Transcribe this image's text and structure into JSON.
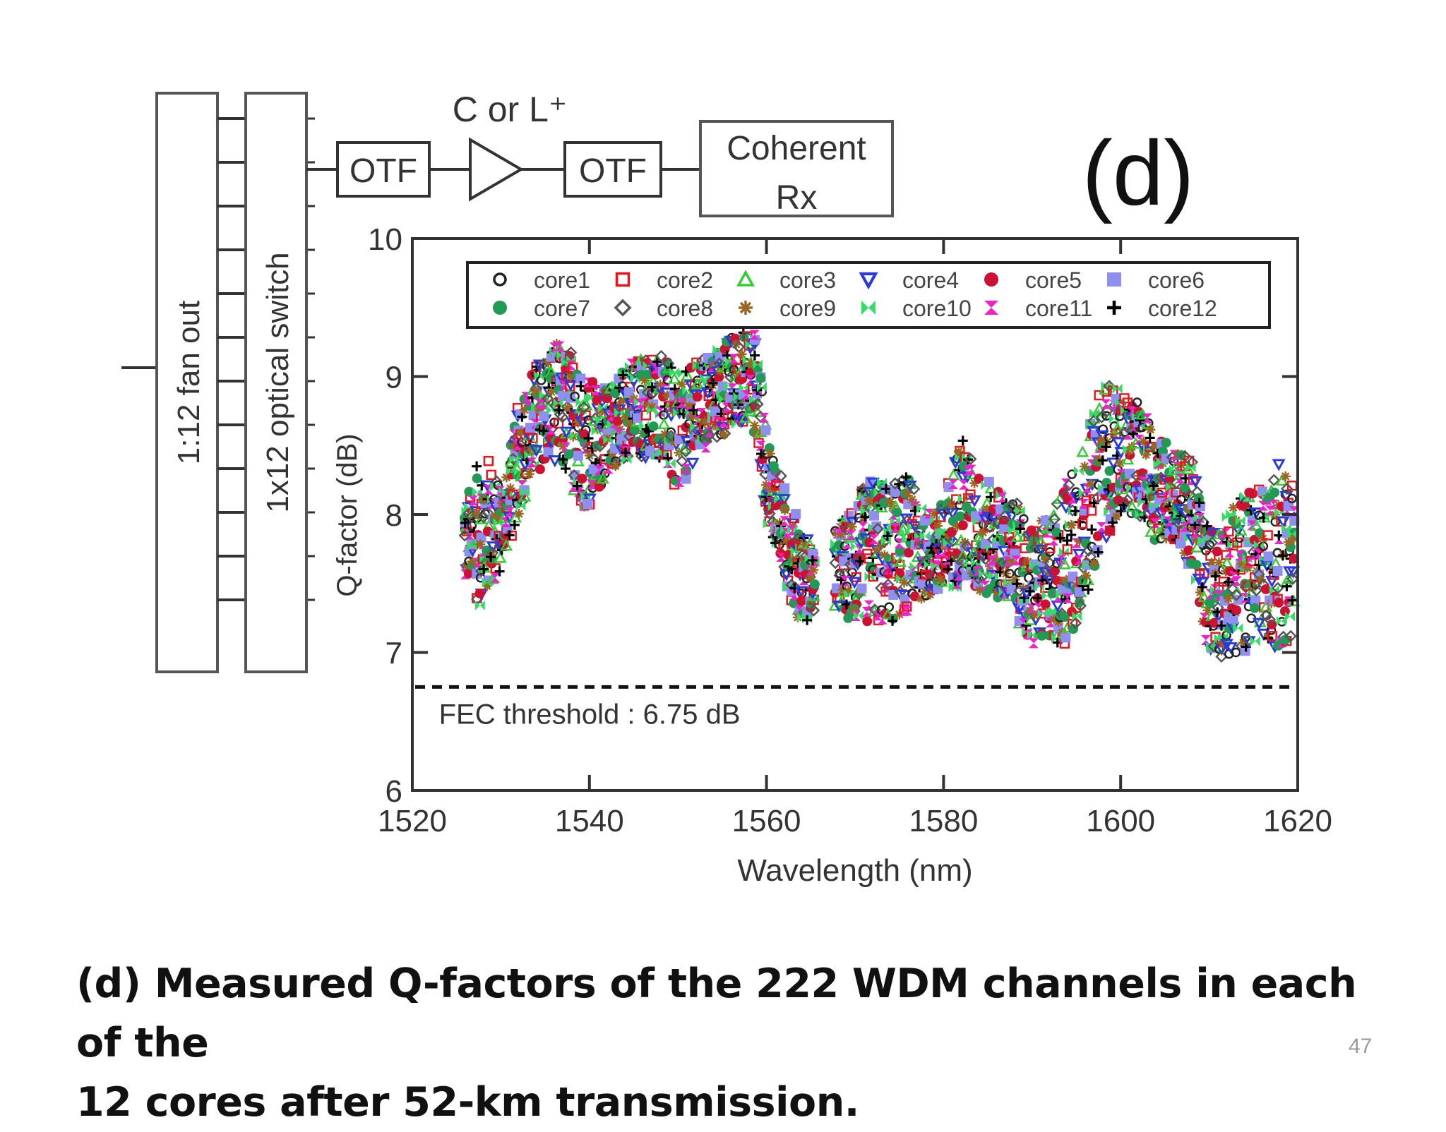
{
  "figure_label": "(d)",
  "diagram": {
    "fan_out_label": "1:12 fan out",
    "switch_label": "1x12 optical switch",
    "otf_left_label": "OTF",
    "amplifier_label": "C or L⁺",
    "otf_right_label": "OTF",
    "receiver_label_line1": "Coherent",
    "receiver_label_line2": "Rx"
  },
  "caption": {
    "line1": "(d) Measured Q-factors of the 222 WDM channels in each of the",
    "line2": "12 cores after 52-km transmission."
  },
  "slide_number": "47",
  "chart_data": {
    "type": "scatter",
    "title": "",
    "xlabel": "Wavelength (nm)",
    "ylabel": "Q-factor (dB)",
    "xlim": [
      1520,
      1620
    ],
    "ylim": [
      6,
      10
    ],
    "xticks": [
      1520,
      1540,
      1560,
      1580,
      1600,
      1620
    ],
    "yticks": [
      6,
      7,
      8,
      9,
      10
    ],
    "grid": false,
    "legend_position": "top",
    "threshold": {
      "value": 6.75,
      "label": "FEC threshold : 6.75 dB"
    },
    "series": [
      {
        "name": "core1",
        "marker": "circle-open",
        "color": "#222222"
      },
      {
        "name": "core2",
        "marker": "square-open",
        "color": "#e8141e"
      },
      {
        "name": "core3",
        "marker": "triangle-open",
        "color": "#33cc33"
      },
      {
        "name": "core4",
        "marker": "triangle-down",
        "color": "#2a3ae0"
      },
      {
        "name": "core5",
        "marker": "circle",
        "color": "#cc1133"
      },
      {
        "name": "core6",
        "marker": "square",
        "color": "#8f8ff0"
      },
      {
        "name": "core7",
        "marker": "circle",
        "color": "#229955"
      },
      {
        "name": "core8",
        "marker": "diamond-open",
        "color": "#555555"
      },
      {
        "name": "core9",
        "marker": "star",
        "color": "#996622"
      },
      {
        "name": "core10",
        "marker": "bowtie",
        "color": "#33dd66"
      },
      {
        "name": "core11",
        "marker": "hourglass",
        "color": "#ee22cc"
      },
      {
        "name": "core12",
        "marker": "plus",
        "color": "#000000"
      }
    ],
    "envelope": {
      "x": [
        1526,
        1528,
        1530,
        1532,
        1534,
        1536,
        1538,
        1540,
        1542,
        1544,
        1546,
        1548,
        1550,
        1552,
        1554,
        1556,
        1558,
        1559,
        1560,
        1562,
        1564,
        1566,
        1568,
        1570,
        1572,
        1574,
        1576,
        1578,
        1580,
        1582,
        1584,
        1586,
        1588,
        1590,
        1592,
        1594,
        1596,
        1598,
        1600,
        1602,
        1604,
        1606,
        1608,
        1610,
        1612,
        1614,
        1616,
        1618,
        1620
      ],
      "upper": [
        8.1,
        8.5,
        8.2,
        8.8,
        9.1,
        9.25,
        9.2,
        9.0,
        8.9,
        9.1,
        9.15,
        9.2,
        9.0,
        9.1,
        9.2,
        9.3,
        9.35,
        9.3,
        8.6,
        8.2,
        7.9,
        7.7,
        7.9,
        8.1,
        8.3,
        8.2,
        8.3,
        8.0,
        8.1,
        8.6,
        8.3,
        8.2,
        8.1,
        7.9,
        8.0,
        8.3,
        8.5,
        9.0,
        8.9,
        8.8,
        8.6,
        8.5,
        8.4,
        7.9,
        8.0,
        8.2,
        8.2,
        8.4,
        8.3
      ],
      "lower": [
        7.5,
        7.3,
        7.6,
        8.0,
        8.3,
        8.4,
        8.2,
        8.0,
        8.3,
        8.4,
        8.4,
        8.4,
        8.1,
        8.4,
        8.5,
        8.6,
        8.7,
        8.5,
        8.0,
        7.5,
        7.2,
        7.3,
        7.3,
        7.2,
        7.2,
        7.2,
        7.3,
        7.4,
        7.4,
        7.5,
        7.4,
        7.4,
        7.3,
        7.0,
        7.1,
        7.0,
        7.4,
        7.8,
        8.0,
        8.0,
        7.8,
        7.8,
        7.6,
        7.0,
        6.95,
        7.0,
        7.1,
        7.0,
        7.2
      ]
    }
  }
}
